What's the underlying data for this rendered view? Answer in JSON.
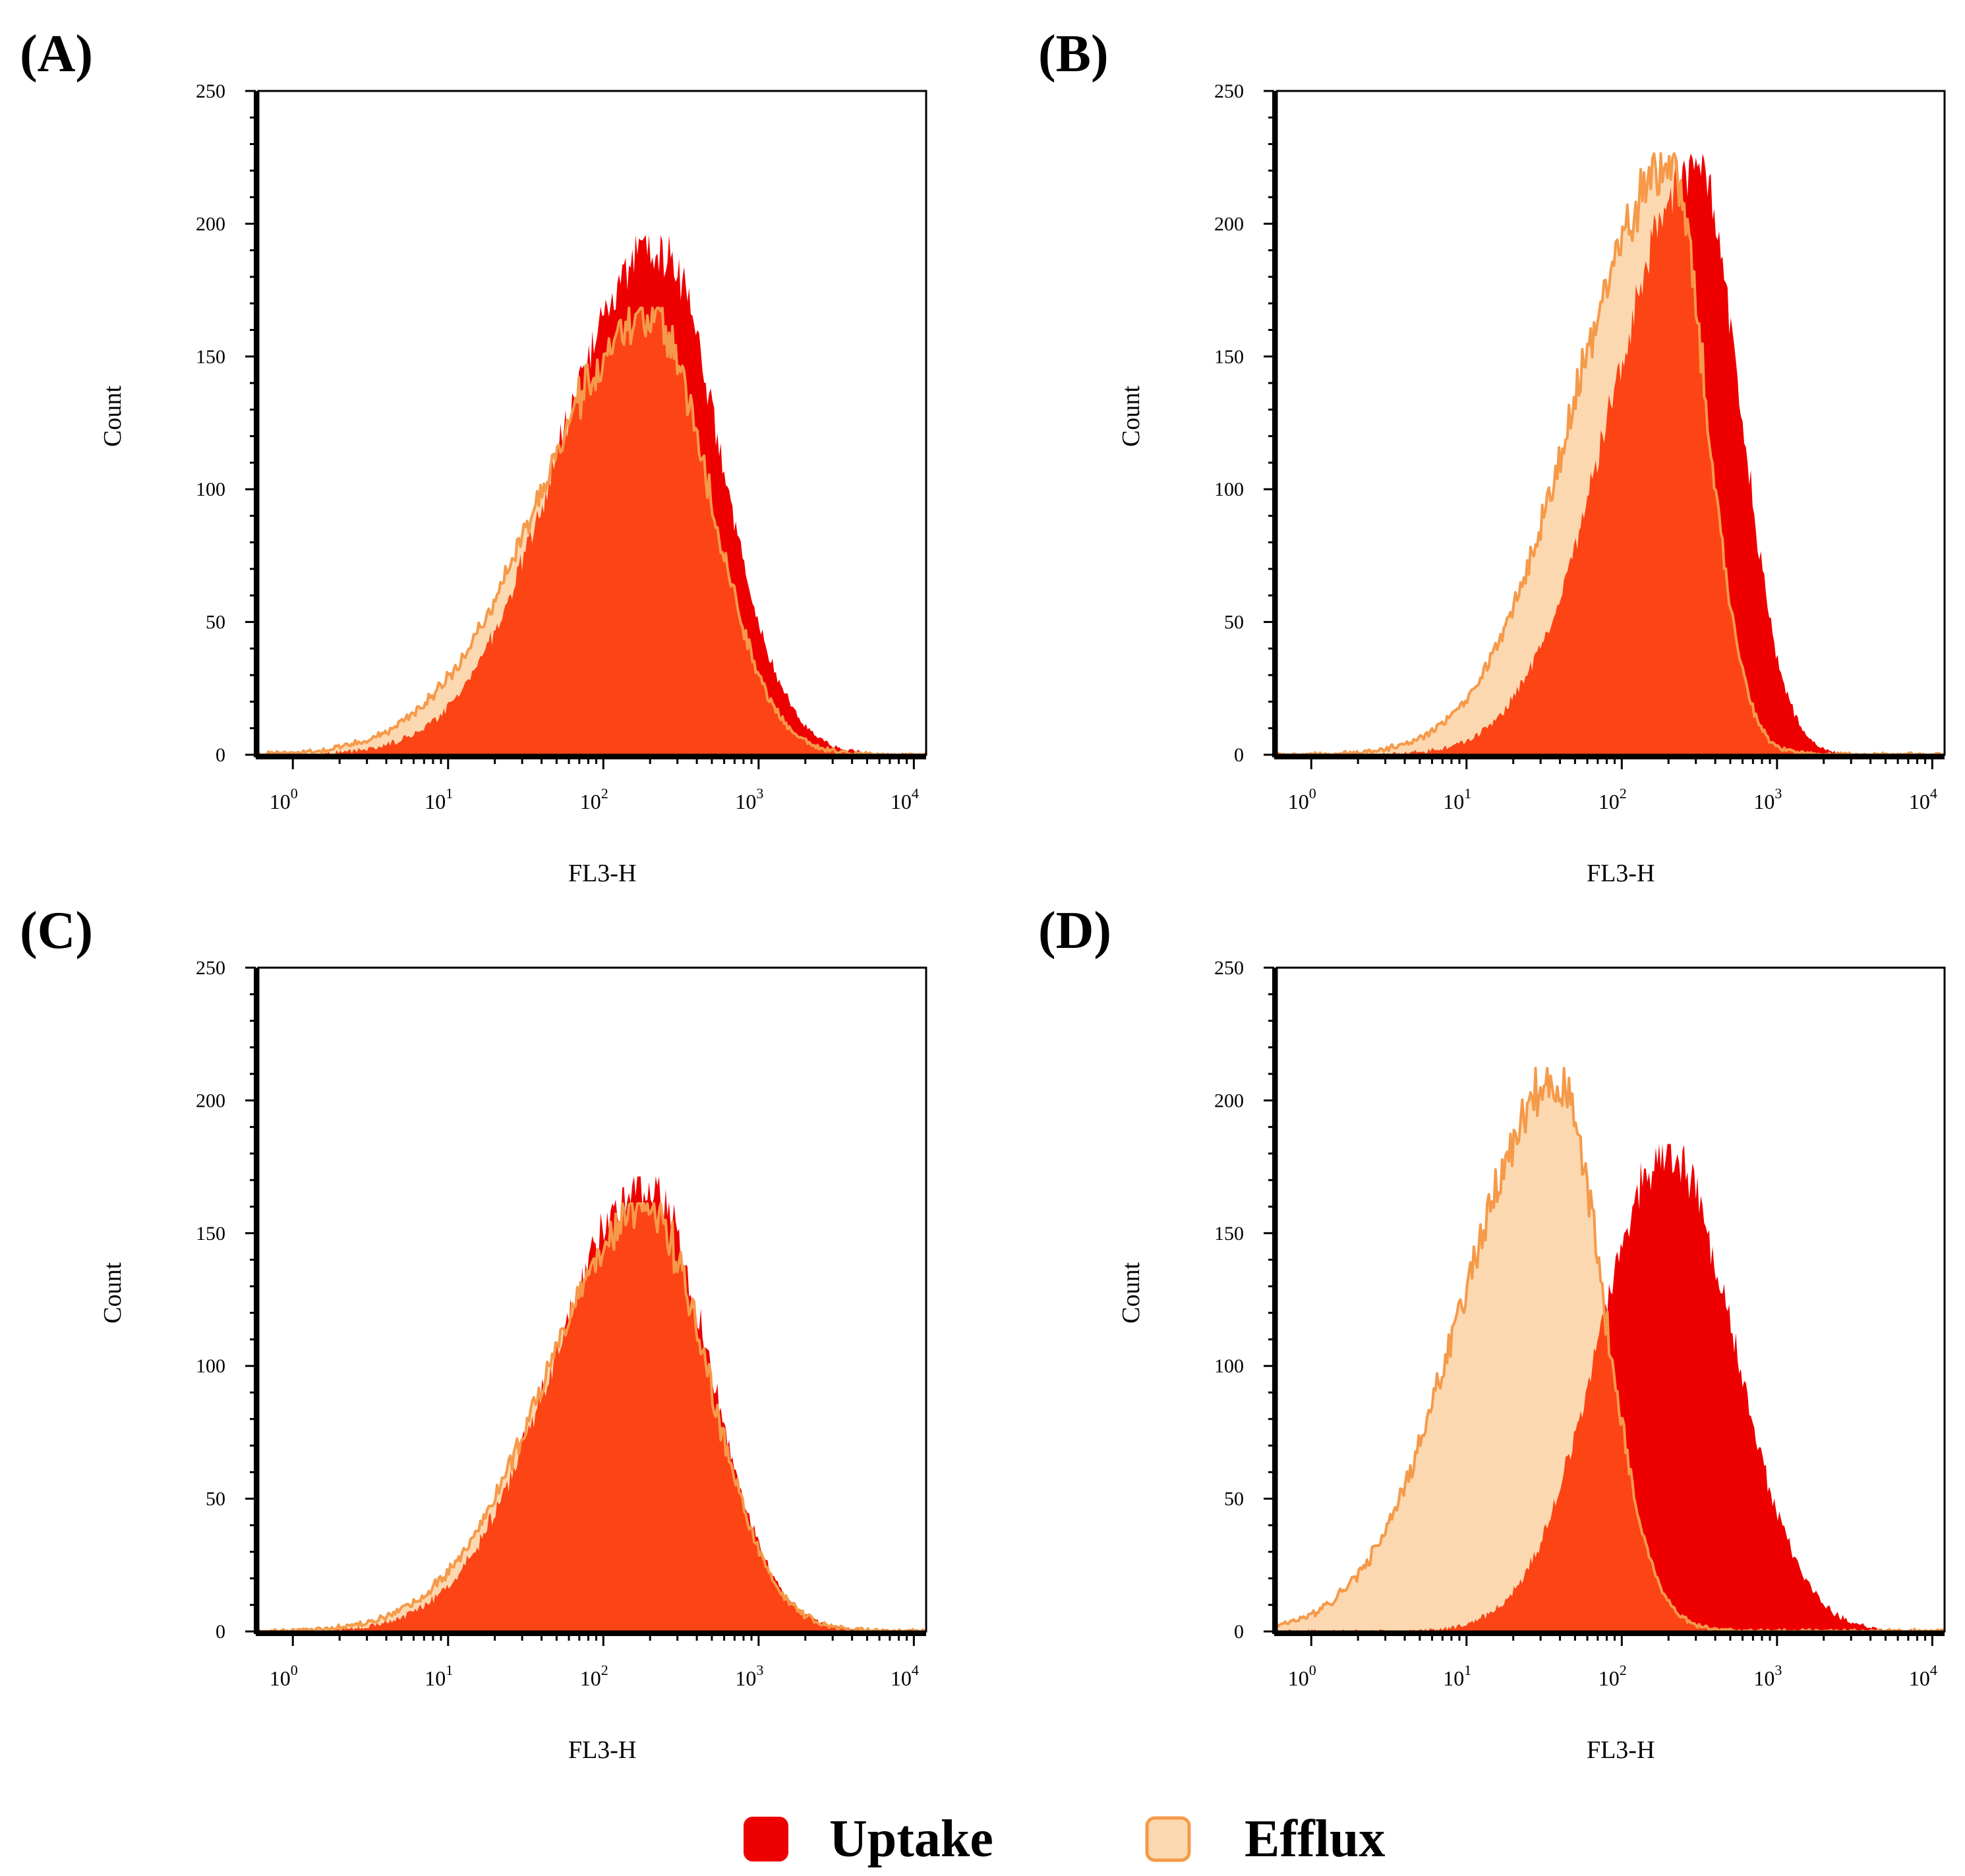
{
  "figure": {
    "legend": [
      {
        "label": "Uptake",
        "color": "#ee0000",
        "edge": "#ee0000"
      },
      {
        "label": "Efflux",
        "color": "#fcd8b0",
        "edge": "#f59a4a"
      }
    ],
    "overlap_color": "#fc4414"
  },
  "chart_data": [
    {
      "panel": "(A)",
      "type": "area",
      "xlabel": "FL3-H",
      "ylabel": "Count",
      "xscale": "log",
      "xlim": [
        0.6,
        12000
      ],
      "ylim": [
        0,
        250
      ],
      "y_ticks": [
        "0",
        "50",
        "100",
        "150",
        "200",
        "250"
      ],
      "x_ticks": [
        {
          "base": "10",
          "exp": "0"
        },
        {
          "base": "10",
          "exp": "1"
        },
        {
          "base": "10",
          "exp": "2"
        },
        {
          "base": "10",
          "exp": "3"
        },
        {
          "base": "10",
          "exp": "4"
        }
      ],
      "series": [
        {
          "name": "Uptake",
          "peak_x": 220,
          "peak": 192,
          "wl": 0.62,
          "wr": 0.4
        },
        {
          "name": "Efflux",
          "peak_x": 200,
          "peak": 165,
          "wl": 0.7,
          "wr": 0.38
        }
      ]
    },
    {
      "panel": "(B)",
      "type": "area",
      "xlabel": "FL3-H",
      "ylabel": "Count",
      "xscale": "log",
      "xlim": [
        0.6,
        12000
      ],
      "ylim": [
        0,
        250
      ],
      "y_ticks": [
        "0",
        "50",
        "100",
        "150",
        "200",
        "250"
      ],
      "x_ticks": [
        {
          "base": "10",
          "exp": "0"
        },
        {
          "base": "10",
          "exp": "1"
        },
        {
          "base": "10",
          "exp": "2"
        },
        {
          "base": "10",
          "exp": "3"
        },
        {
          "base": "10",
          "exp": "4"
        }
      ],
      "series": [
        {
          "name": "Uptake",
          "peak_x": 310,
          "peak": 222,
          "wl": 0.55,
          "wr": 0.27
        },
        {
          "name": "Efflux",
          "peak_x": 200,
          "peak": 222,
          "wl": 0.6,
          "wr": 0.24
        }
      ]
    },
    {
      "panel": "(C)",
      "type": "area",
      "xlabel": "FL3-H",
      "ylabel": "Count",
      "xscale": "log",
      "xlim": [
        0.6,
        12000
      ],
      "ylim": [
        0,
        250
      ],
      "y_ticks": [
        "0",
        "50",
        "100",
        "150",
        "200",
        "250"
      ],
      "x_ticks": [
        {
          "base": "10",
          "exp": "0"
        },
        {
          "base": "10",
          "exp": "1"
        },
        {
          "base": "10",
          "exp": "2"
        },
        {
          "base": "10",
          "exp": "3"
        },
        {
          "base": "10",
          "exp": "4"
        }
      ],
      "series": [
        {
          "name": "Uptake",
          "peak_x": 190,
          "peak": 168,
          "wl": 0.6,
          "wr": 0.4
        },
        {
          "name": "Efflux",
          "peak_x": 190,
          "peak": 158,
          "wl": 0.65,
          "wr": 0.4
        }
      ]
    },
    {
      "panel": "(D)",
      "type": "area",
      "xlabel": "FL3-H",
      "ylabel": "Count",
      "xscale": "log",
      "xlim": [
        0.6,
        12000
      ],
      "ylim": [
        0,
        250
      ],
      "y_ticks": [
        "0",
        "50",
        "100",
        "150",
        "200",
        "250"
      ],
      "x_ticks": [
        {
          "base": "10",
          "exp": "0"
        },
        {
          "base": "10",
          "exp": "1"
        },
        {
          "base": "10",
          "exp": "2"
        },
        {
          "base": "10",
          "exp": "3"
        },
        {
          "base": "10",
          "exp": "4"
        }
      ],
      "series": [
        {
          "name": "Uptake",
          "peak_x": 200,
          "peak": 180,
          "wl": 0.45,
          "wr": 0.42
        },
        {
          "name": "Efflux",
          "peak_x": 38,
          "peak": 208,
          "wl": 0.6,
          "wr": 0.3
        }
      ]
    }
  ]
}
